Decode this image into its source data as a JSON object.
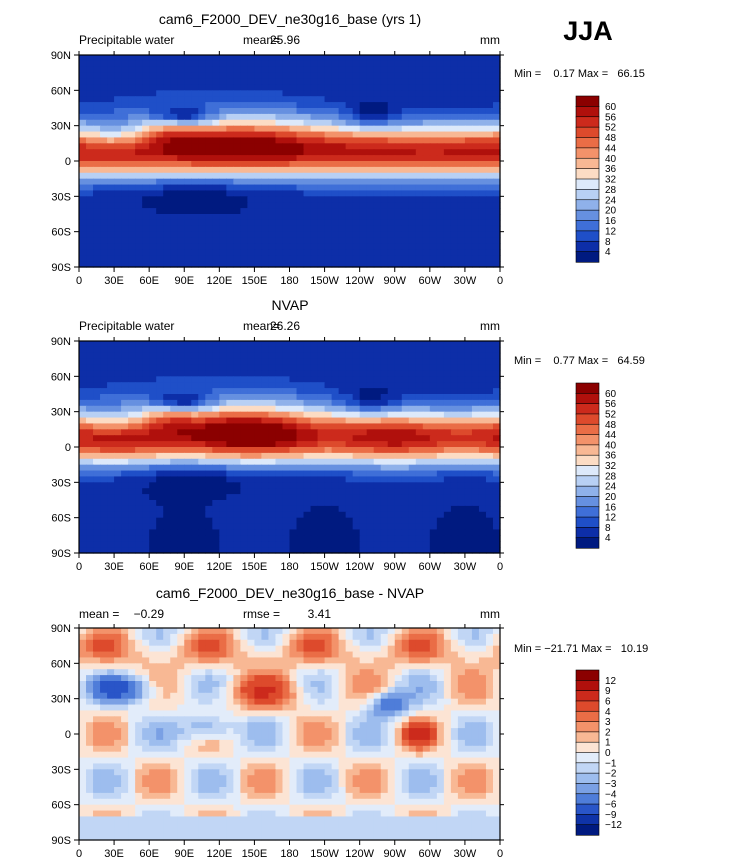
{
  "season_label": "JJA",
  "chart_data": [
    {
      "type": "heatmap",
      "title": "cam6_F2000_DEV_ne30g16_base (yrs 1)",
      "variable": "Precipitable water",
      "mean_label": "mean=",
      "mean_value": "25.96",
      "units": "mm",
      "stats_label": "Min =    0.17 Max =   66.15",
      "min": 0.17,
      "max": 66.15,
      "x_ticks": [
        "0",
        "30E",
        "60E",
        "90E",
        "120E",
        "150E",
        "180",
        "150W",
        "120W",
        "90W",
        "60W",
        "30W",
        "0"
      ],
      "y_ticks": [
        "90N",
        "60N",
        "30N",
        "0",
        "30S",
        "60S",
        "90S"
      ],
      "colorbar_labels": [
        "60",
        "56",
        "52",
        "48",
        "44",
        "40",
        "36",
        "32",
        "28",
        "24",
        "20",
        "16",
        "12",
        "8",
        "4"
      ],
      "colorbar_colors": [
        "#8b0000",
        "#b0100c",
        "#cc2a1c",
        "#dd4a2c",
        "#ea6d46",
        "#f3926a",
        "#f8b894",
        "#fcdcc4",
        "#dde9fa",
        "#b8d0f4",
        "#8fb1ea",
        "#6690e0",
        "#3f6fd8",
        "#1f4fc8",
        "#0d2ea8",
        "#001a80"
      ],
      "field": "jja_pw_model"
    },
    {
      "type": "heatmap",
      "title": "NVAP",
      "variable": "Precipitable water",
      "mean_label": "mean=",
      "mean_value": "26.26",
      "units": "mm",
      "stats_label": "Min =    0.77 Max =   64.59",
      "min": 0.77,
      "max": 64.59,
      "x_ticks": [
        "0",
        "30E",
        "60E",
        "90E",
        "120E",
        "150E",
        "180",
        "150W",
        "120W",
        "90W",
        "60W",
        "30W",
        "0"
      ],
      "y_ticks": [
        "90N",
        "60N",
        "30N",
        "0",
        "30S",
        "60S",
        "90S"
      ],
      "colorbar_labels": [
        "60",
        "56",
        "52",
        "48",
        "44",
        "40",
        "36",
        "32",
        "28",
        "24",
        "20",
        "16",
        "12",
        "8",
        "4"
      ],
      "colorbar_colors": [
        "#8b0000",
        "#b0100c",
        "#cc2a1c",
        "#dd4a2c",
        "#ea6d46",
        "#f3926a",
        "#f8b894",
        "#fcdcc4",
        "#dde9fa",
        "#b8d0f4",
        "#8fb1ea",
        "#6690e0",
        "#3f6fd8",
        "#1f4fc8",
        "#0d2ea8",
        "#001a80"
      ],
      "field": "jja_pw_obs"
    },
    {
      "type": "heatmap",
      "title": "cam6_F2000_DEV_ne30g16_base - NVAP",
      "mean_label": "mean =",
      "mean_value": "−0.29",
      "rmse_label": "rmse =",
      "rmse_value": "3.41",
      "units": "mm",
      "stats_label": "Min = −21.71 Max =   10.19",
      "min": -21.71,
      "max": 10.19,
      "x_ticks": [
        "0",
        "30E",
        "60E",
        "90E",
        "120E",
        "150E",
        "180",
        "150W",
        "120W",
        "90W",
        "60W",
        "30W",
        "0"
      ],
      "y_ticks": [
        "90N",
        "60N",
        "30N",
        "0",
        "30S",
        "60S",
        "90S"
      ],
      "colorbar_labels": [
        "12",
        "9",
        "6",
        "4",
        "3",
        "2",
        "1",
        "0",
        "−1",
        "−2",
        "−3",
        "−4",
        "−6",
        "−9",
        "−12"
      ],
      "colorbar_colors": [
        "#8b0000",
        "#b0100c",
        "#cc2a1c",
        "#dd4a2c",
        "#ea6d46",
        "#f3926a",
        "#f8b894",
        "#fce4d4",
        "#e2ecfa",
        "#c1d6f5",
        "#9dbdee",
        "#7aa0e4",
        "#4f7dd9",
        "#2955c8",
        "#0f33a8",
        "#001a80"
      ],
      "field": "jja_pw_diff"
    }
  ]
}
